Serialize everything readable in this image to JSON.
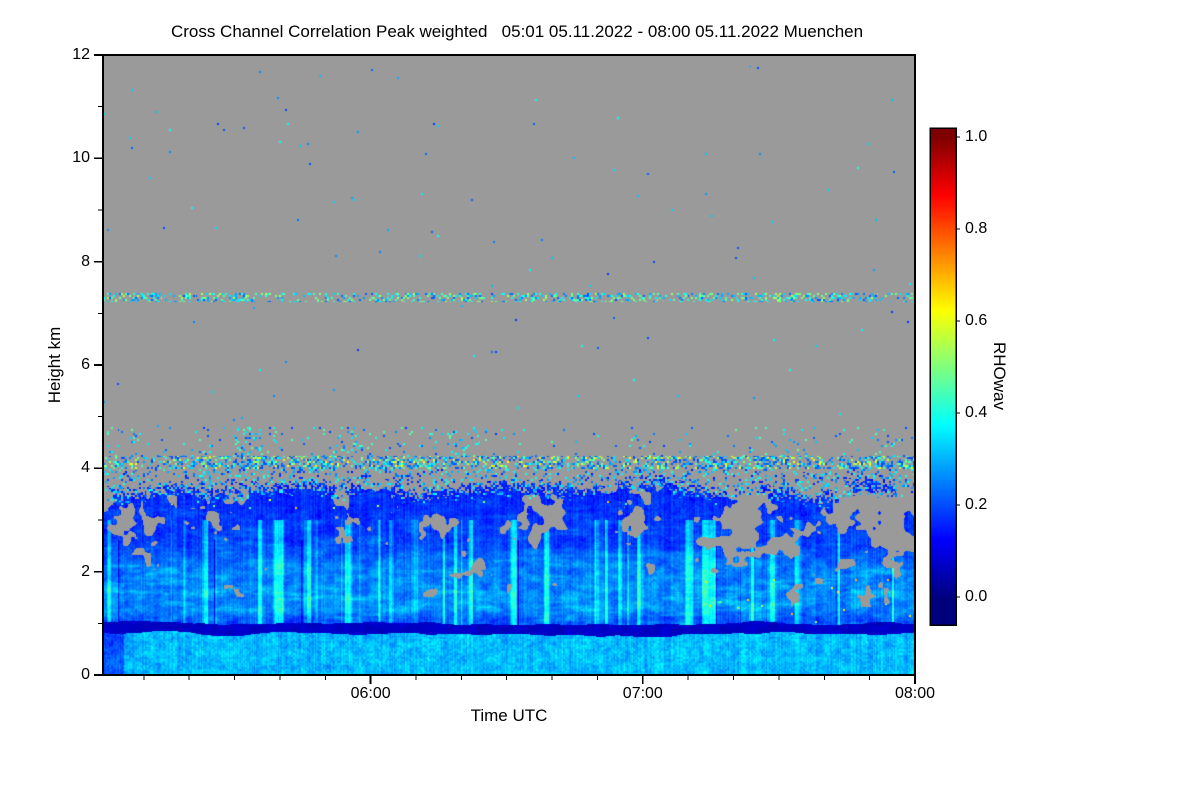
{
  "title": "Cross Channel Correlation Peak weighted   05:01 05.11.2022 - 08:00 05.11.2022 Muenchen",
  "chart_data": {
    "type": "heatmap",
    "title": "Cross Channel Correlation Peak weighted",
    "time_range": "05:01 05.11.2022 - 08:00 05.11.2022",
    "station": "Muenchen",
    "xlabel": "Time UTC",
    "ylabel": "Height km",
    "x_start": "05:01",
    "x_end": "08:00",
    "total_minutes": 179,
    "x_ticks": [
      {
        "label": "06:00",
        "minutes_from_start": 59
      },
      {
        "label": "07:00",
        "minutes_from_start": 119
      },
      {
        "label": "08:00",
        "minutes_from_start": 179
      }
    ],
    "x_minor_tick_every_minutes": 10,
    "y_ticks": [
      0,
      2,
      4,
      6,
      8,
      10,
      12
    ],
    "y_minor_tick_every_km": 1,
    "ylim": [
      0,
      12
    ],
    "colorbar": {
      "label": "RHOwav",
      "ticks": [
        0.0,
        0.2,
        0.4,
        0.6,
        0.8,
        1.0
      ],
      "range": [
        0.0,
        1.0
      ],
      "colormap": "jet"
    },
    "no_data_color": "#9a9a9a",
    "features": {
      "description": "Lidar cross-channel correlation time-height section; valid data only below ~4.2 km, gray = no data above",
      "cloud_aerosol_layer": {
        "height_range_km": [
          0,
          4.2
        ],
        "ragged_top_km": [
          3.0,
          4.2
        ],
        "typical_rho": [
          0.1,
          0.4
        ]
      },
      "dark_low_band": {
        "center_km": 0.9,
        "thickness_km": 0.2,
        "rho": [
          0.0,
          0.08
        ]
      },
      "bright_surface_layer": {
        "height_range_km": [
          0,
          0.8
        ],
        "rho": [
          0.27,
          0.38
        ]
      },
      "speckle_line_cloud_top": {
        "height_km": 4.1,
        "rho": [
          0.2,
          0.65
        ]
      },
      "speckle_line_upper": {
        "height_km": 7.3,
        "rho": [
          0.2,
          0.55
        ]
      },
      "gray_holes": {
        "height_range_km": [
          1.5,
          4.0
        ],
        "note": "no-data gaps inside layer, denser after 07:15"
      }
    }
  }
}
